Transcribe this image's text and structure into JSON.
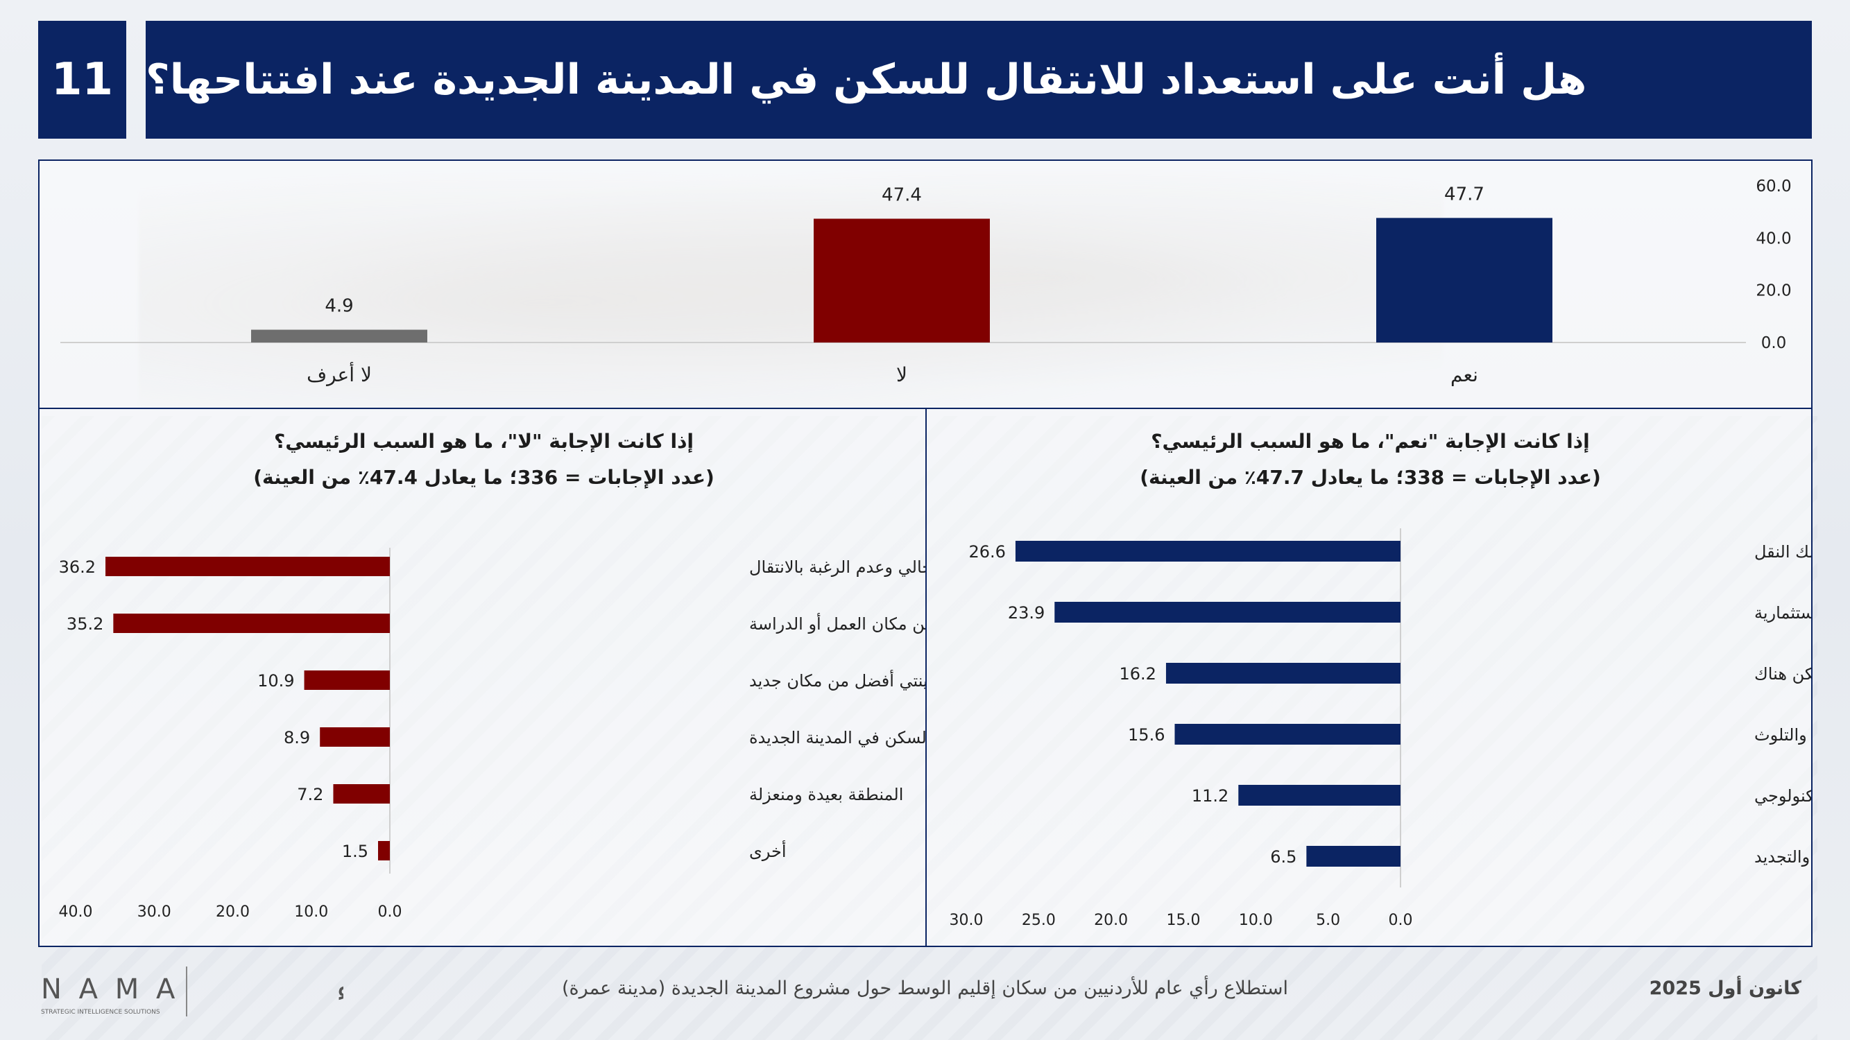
{
  "slide_number": "11",
  "title": "هل أنت على استعداد للانتقال للسكن في المدينة الجديدة عند افتتاحها؟",
  "footer": {
    "survey": "استطلاع رأي عام للأردنيين من سكان إقليم الوسط حول مشروع المدينة الجديدة (مدينة عمرة)",
    "date": "كانون أول 2025",
    "logo_latin": "N A M A",
    "logo_arabic": "نمــــــاء",
    "logo_tagline": "STRATEGIC INTELLIGENCE SOLUTIONS"
  },
  "colors": {
    "navy": "#0b2463",
    "maroon": "#800000",
    "gray": "#6e6e6e"
  },
  "chart_data": [
    {
      "type": "bar",
      "categories": [
        "نعم",
        "لا",
        "لا أعرف"
      ],
      "values": [
        47.7,
        47.4,
        4.9
      ],
      "colors": [
        "#0b2463",
        "#800000",
        "#6e6e6e"
      ],
      "ylim": [
        0,
        60
      ],
      "yticks": [
        "60.0",
        "40.0",
        "20.0",
        "0.0"
      ],
      "value_labels": [
        "47.7",
        "47.4",
        "4.9"
      ]
    },
    {
      "type": "bar",
      "orientation": "horizontal",
      "title": "إذا كانت الإجابة \"لا\"، ما هو السبب الرئيسي؟",
      "subtitle": "(عدد الإجابات = 336؛ ما يعادل 47.4٪ من العينة)",
      "categories": [
        "امتلاك بيت المسكن الحالي وعدم الرغبة بالانتقال",
        "التعود والارتياح في مكان السكن الحالي وقربه من مكان العمل أو الدراسة",
        "توفر الخدمات في مدينتي أفضل من مكان جديد",
        "عدم القدرة على تحمل تكاليف السكن في المدينة الجديدة",
        "المنطقة بعيدة ومنعزلة",
        "أخرى"
      ],
      "values": [
        36.2,
        35.2,
        10.9,
        8.9,
        7.2,
        1.5
      ],
      "value_labels": [
        "36.2",
        "35.2",
        "10.9",
        "8.9",
        "7.2",
        "1.5"
      ],
      "xlim": [
        0,
        40
      ],
      "xticks": [
        "40.0",
        "30.0",
        "20.0",
        "10.0",
        "0.0"
      ],
      "color": "#800000"
    },
    {
      "type": "bar",
      "orientation": "horizontal",
      "title": "إذا كانت الإجابة \"نعم\"، ما هو السبب الرئيسي؟",
      "subtitle": "(عدد الإجابات = 338؛ ما يعادل 47.7٪ من العينة)",
      "categories": [
        "تواجد الخدمات عالية الجودة، بما في ذلك النقل",
        "توفر فرص عمل وفرص استثمارية",
        "القدرة على تحمل تكاليف السكن هناك",
        "للابتعاد عن الازدحام السكاني والأزمات المرورية والتلوث",
        "بسبب تركيزها على التطور التكنولوجي",
        "من باب التغيير والتجديد"
      ],
      "values": [
        26.6,
        23.9,
        16.2,
        15.6,
        11.2,
        6.5
      ],
      "value_labels": [
        "26.6",
        "23.9",
        "16.2",
        "15.6",
        "11.2",
        "6.5"
      ],
      "xlim": [
        0,
        30
      ],
      "xticks": [
        "30.0",
        "25.0",
        "20.0",
        "15.0",
        "10.0",
        "5.0",
        "0.0"
      ],
      "color": "#0b2463"
    }
  ]
}
